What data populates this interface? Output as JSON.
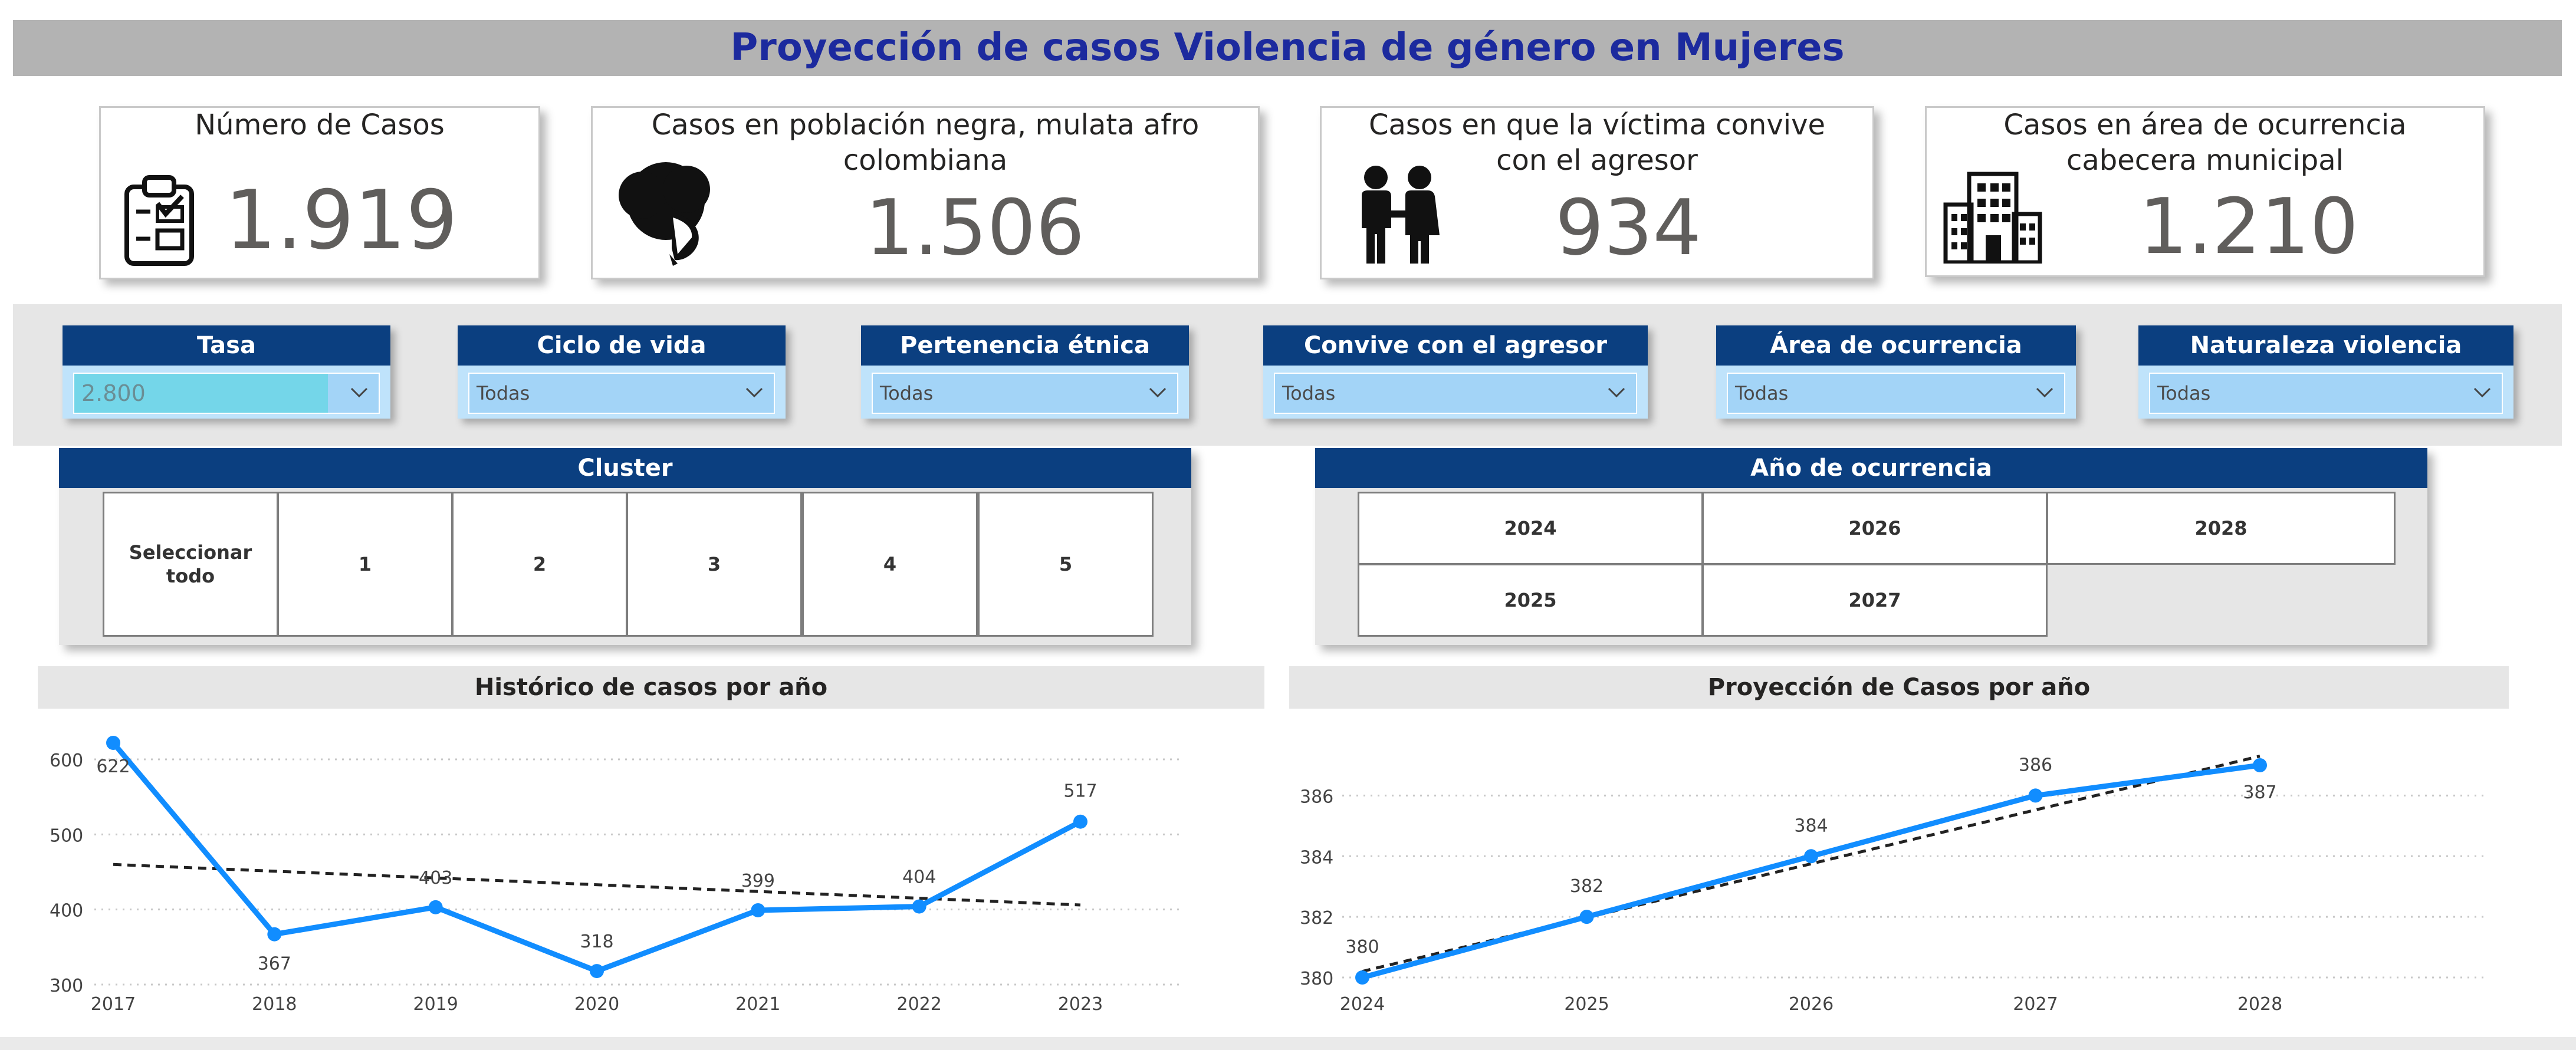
{
  "title": "Proyección de casos Violencia de género en Mujeres",
  "kpis": [
    {
      "title": "Número de Casos",
      "value": "1.919",
      "icon": "clipboard-checklist-icon"
    },
    {
      "title_line1": "Casos en población negra, mulata afro",
      "title_line2": "colombiana",
      "value": "1.506",
      "icon": "afro-woman-profile-icon"
    },
    {
      "title_line1": "Casos en que la víctima convive",
      "title_line2": "con el agresor",
      "value": "934",
      "icon": "couple-icon"
    },
    {
      "title_line1": "Casos en área de ocurrencia",
      "title_line2": "cabecera municipal",
      "value": "1.210",
      "icon": "building-icon"
    }
  ],
  "filters": [
    {
      "label": "Tasa",
      "value": "2.800"
    },
    {
      "label": "Ciclo de vida",
      "value": "Todas"
    },
    {
      "label": "Pertenencia étnica",
      "value": "Todas"
    },
    {
      "label": "Convive con el agresor",
      "value": "Todas"
    },
    {
      "label": "Área de ocurrencia",
      "value": "Todas"
    },
    {
      "label": "Naturaleza violencia",
      "value": "Todas"
    }
  ],
  "cluster": {
    "label": "Cluster",
    "select_all_line1": "Seleccionar",
    "select_all_line2": "todo",
    "items": [
      "1",
      "2",
      "3",
      "4",
      "5"
    ]
  },
  "year_filter": {
    "label": "Año de ocurrencia",
    "items": [
      "2024",
      "2026",
      "2028",
      "2025",
      "2027"
    ]
  },
  "colors": {
    "header_blue": "#0b3f80",
    "title_blue": "#1c2a9e",
    "line_blue": "#118dff",
    "slicer_bg": "#a3d4f7",
    "selected_cyan": "#74d6e9"
  },
  "chart_data": [
    {
      "type": "line",
      "title": "Histórico de casos por año",
      "x": [
        "2017",
        "2018",
        "2019",
        "2020",
        "2021",
        "2022",
        "2023"
      ],
      "values": [
        622,
        367,
        403,
        318,
        399,
        404,
        517
      ],
      "value_labels": [
        "622",
        "367",
        "403",
        "318",
        "399",
        "404",
        "517"
      ],
      "y_ticks": [
        "300",
        "400",
        "500",
        "600"
      ],
      "ylim": [
        300,
        622
      ],
      "trend_line": [
        460,
        406
      ],
      "grid": true
    },
    {
      "type": "line",
      "title": "Proyección de Casos por año",
      "x": [
        "2024",
        "2025",
        "2026",
        "2027",
        "2028"
      ],
      "values": [
        380,
        382,
        384,
        386,
        387
      ],
      "value_labels": [
        "380",
        "382",
        "384",
        "386",
        "387"
      ],
      "y_ticks": [
        "380",
        "382",
        "384",
        "386"
      ],
      "ylim": [
        380,
        387
      ],
      "trend_line": [
        380.2,
        387.3
      ],
      "grid": true
    }
  ]
}
